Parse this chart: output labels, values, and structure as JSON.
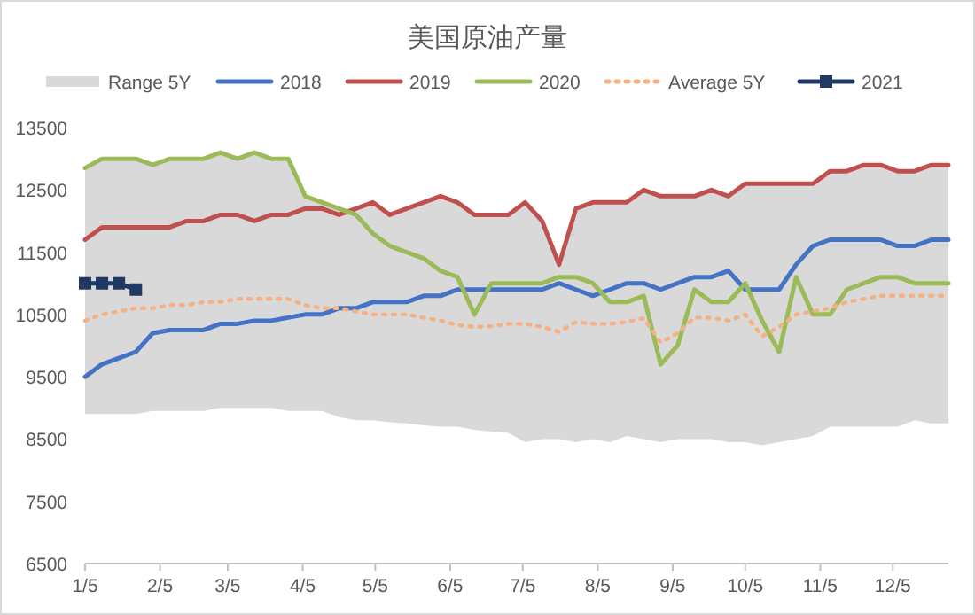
{
  "chart_data": {
    "type": "line",
    "title": "美国原油产量",
    "x": [
      "--01-05",
      "--01-12",
      "--01-19",
      "--01-26",
      "--02-02",
      "--02-09",
      "--02-16",
      "--02-23",
      "--03-02",
      "--03-09",
      "--03-16",
      "--03-23",
      "--03-30",
      "--04-06",
      "--04-13",
      "--04-20",
      "--04-27",
      "--05-04",
      "--05-11",
      "--05-18",
      "--05-25",
      "--06-01",
      "--06-08",
      "--06-15",
      "--06-22",
      "--06-29",
      "--07-06",
      "--07-13",
      "--07-20",
      "--07-27",
      "--08-03",
      "--08-10",
      "--08-17",
      "--08-24",
      "--08-31",
      "--09-07",
      "--09-14",
      "--09-21",
      "--09-28",
      "--10-05",
      "--10-12",
      "--10-19",
      "--10-26",
      "--11-02",
      "--11-09",
      "--11-16",
      "--11-23",
      "--11-30",
      "--12-07",
      "--12-14",
      "--12-21",
      "--12-28"
    ],
    "xlim": [
      "--01-05",
      "--12-28"
    ],
    "xticks": [
      {
        "value": "--01-05",
        "label": "1/5"
      },
      {
        "value": "--02-05",
        "label": "2/5"
      },
      {
        "value": "--03-05",
        "label": "3/5"
      },
      {
        "value": "--04-05",
        "label": "4/5"
      },
      {
        "value": "--05-05",
        "label": "5/5"
      },
      {
        "value": "--06-05",
        "label": "6/5"
      },
      {
        "value": "--07-05",
        "label": "7/5"
      },
      {
        "value": "--08-05",
        "label": "8/5"
      },
      {
        "value": "--09-05",
        "label": "9/5"
      },
      {
        "value": "--10-05",
        "label": "10/5"
      },
      {
        "value": "--11-05",
        "label": "11/5"
      },
      {
        "value": "--12-05",
        "label": "12/5"
      }
    ],
    "ylim": [
      6500,
      13500
    ],
    "yticks": [
      6500,
      7500,
      8500,
      9500,
      10500,
      11500,
      12500,
      13500
    ],
    "grid": false,
    "legend": "top",
    "series": [
      {
        "name": "Range 5Y",
        "type": "area",
        "color": "#d9d9d9",
        "lower": [
          8900,
          8900,
          8900,
          8900,
          8950,
          8950,
          8950,
          8950,
          9000,
          9000,
          9000,
          9000,
          8950,
          8950,
          8950,
          8850,
          8800,
          8800,
          8770,
          8750,
          8720,
          8700,
          8700,
          8650,
          8620,
          8600,
          8450,
          8500,
          8500,
          8450,
          8500,
          8450,
          8550,
          8500,
          8450,
          8500,
          8500,
          8500,
          8450,
          8450,
          8400,
          8450,
          8500,
          8550,
          8700,
          8700,
          8700,
          8700,
          8700,
          8800,
          8750,
          8750
        ],
        "upper": [
          12850,
          13000,
          13000,
          13000,
          12900,
          13000,
          13000,
          13000,
          13100,
          13000,
          13100,
          13000,
          13000,
          12400,
          12300,
          12200,
          12200,
          12300,
          12100,
          12200,
          12300,
          12400,
          12300,
          12100,
          12100,
          12100,
          12300,
          12000,
          11300,
          12200,
          12300,
          12300,
          12300,
          12500,
          12400,
          12400,
          12400,
          12500,
          12400,
          12600,
          12600,
          12600,
          12600,
          12600,
          12800,
          12800,
          12900,
          12900,
          12800,
          12800,
          12900,
          12900
        ],
        "values": [
          null,
          null,
          null,
          null,
          null,
          null,
          null,
          null,
          null,
          null,
          null,
          null,
          null,
          null,
          null,
          null,
          null,
          null,
          null,
          null,
          null,
          null,
          null,
          null,
          null,
          null,
          null,
          null,
          null,
          null,
          null,
          null,
          null,
          null,
          null,
          null,
          null,
          null,
          null,
          null,
          null,
          null,
          null,
          null,
          null,
          null,
          null,
          null,
          null,
          null,
          null,
          null
        ]
      },
      {
        "name": "2018",
        "color": "#4472c4",
        "values": [
          9500,
          9700,
          9800,
          9900,
          10200,
          10250,
          10250,
          10250,
          10350,
          10350,
          10400,
          10400,
          10450,
          10500,
          10500,
          10600,
          10600,
          10700,
          10700,
          10700,
          10800,
          10800,
          10900,
          10900,
          10900,
          10900,
          10900,
          10900,
          11000,
          10900,
          10800,
          10900,
          11000,
          11000,
          10900,
          11000,
          11100,
          11100,
          11200,
          10900,
          10900,
          10900,
          11300,
          11600,
          11700,
          11700,
          11700,
          11700,
          11600,
          11600,
          11700,
          11700
        ]
      },
      {
        "name": "2019",
        "color": "#c0504d",
        "values": [
          11700,
          11900,
          11900,
          11900,
          11900,
          11900,
          12000,
          12000,
          12100,
          12100,
          12000,
          12100,
          12100,
          12200,
          12200,
          12100,
          12200,
          12300,
          12100,
          12200,
          12300,
          12400,
          12300,
          12100,
          12100,
          12100,
          12300,
          12000,
          11300,
          12200,
          12300,
          12300,
          12300,
          12500,
          12400,
          12400,
          12400,
          12500,
          12400,
          12600,
          12600,
          12600,
          12600,
          12600,
          12800,
          12800,
          12900,
          12900,
          12800,
          12800,
          12900,
          12900
        ]
      },
      {
        "name": "2020",
        "color": "#9bbb59",
        "values": [
          12850,
          13000,
          13000,
          13000,
          12900,
          13000,
          13000,
          13000,
          13100,
          13000,
          13100,
          13000,
          13000,
          12400,
          12300,
          12200,
          12100,
          11800,
          11600,
          11500,
          11400,
          11200,
          11100,
          10500,
          11000,
          11000,
          11000,
          11000,
          11100,
          11100,
          11000,
          10700,
          10700,
          10800,
          9700,
          10000,
          10900,
          10700,
          10700,
          11000,
          10400,
          9900,
          11100,
          10500,
          10500,
          10900,
          11000,
          11100,
          11100,
          11000,
          11000,
          11000
        ]
      },
      {
        "name": "Average 5Y",
        "color": "#f4b183",
        "line_style": "dotted",
        "values": [
          10400,
          10500,
          10550,
          10600,
          10600,
          10650,
          10650,
          10700,
          10700,
          10750,
          10750,
          10750,
          10750,
          10650,
          10600,
          10600,
          10550,
          10500,
          10500,
          10500,
          10450,
          10400,
          10330,
          10300,
          10310,
          10350,
          10350,
          10300,
          10220,
          10380,
          10350,
          10350,
          10380,
          10440,
          10050,
          10200,
          10450,
          10450,
          10400,
          10500,
          10150,
          10300,
          10500,
          10550,
          10600,
          10700,
          10750,
          10800,
          10800,
          10800,
          10800,
          10800
        ]
      },
      {
        "name": "2021",
        "color": "#1f3864",
        "marker": "square",
        "x": [
          "--01-05",
          "--01-12",
          "--01-19",
          "--01-26"
        ],
        "values": [
          11000,
          11000,
          11000,
          10900
        ]
      }
    ]
  }
}
